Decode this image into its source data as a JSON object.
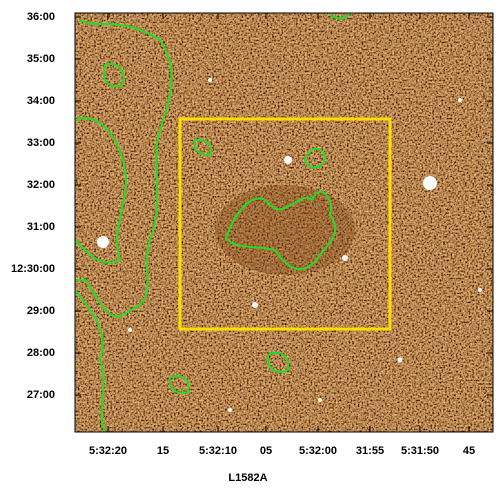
{
  "figure": {
    "title": "L1582A",
    "y_tick_labels": [
      "36:00",
      "35:00",
      "34:00",
      "33:00",
      "32:00",
      "31:00",
      "12:30:00",
      "29:00",
      "28:00",
      "27:00"
    ],
    "x_tick_labels": [
      "5:32:20",
      "15",
      "5:32:10",
      "05",
      "5:32:00",
      "31:55",
      "5:31:50",
      "45"
    ]
  }
}
